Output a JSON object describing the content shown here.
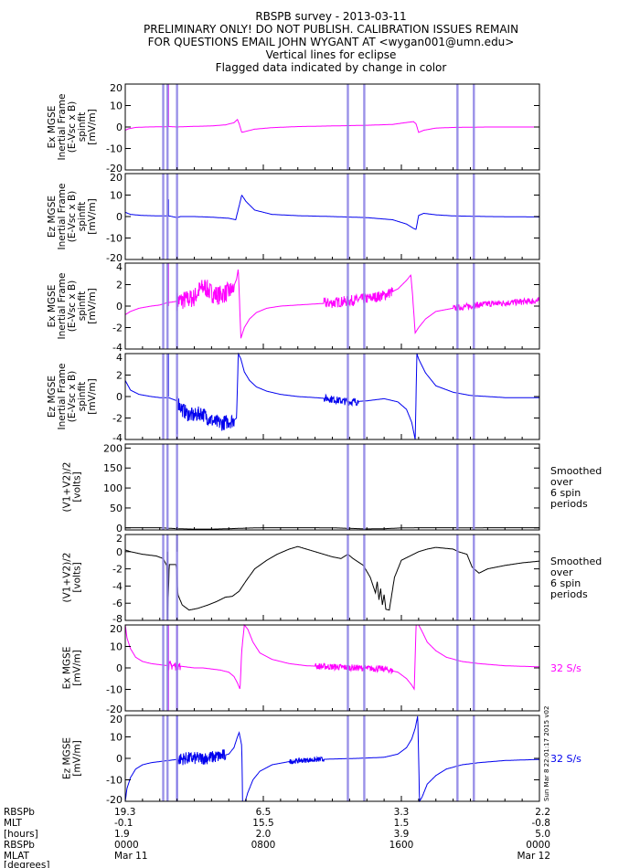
{
  "header": {
    "lines": [
      "RBSPB survey - 2013-03-11",
      "PRELIMINARY ONLY! DO NOT PUBLISH. CALIBRATION ISSUES REMAIN",
      "FOR QUESTIONS EMAIL JOHN WYGANT AT <wygan001@umn.edu>",
      "Vertical lines for eclipse",
      "Flagged data indicated by change in color"
    ]
  },
  "colors": {
    "magenta": "#ff00ff",
    "blue": "#0000ee",
    "black": "#000000",
    "eclipse": "#8f85e6",
    "frame": "#000000"
  },
  "eclipse_lines_hours": [
    2.2,
    2.45,
    3.0,
    12.9,
    13.85,
    19.25,
    20.2
  ],
  "flag_line_hours": 2.5,
  "chart_data": [
    {
      "type": "line",
      "ylabel_lines": [
        "Ex MGSE",
        "Inertial Frame",
        "(E-Vsc x B)",
        "spinfit",
        "[mV/m]"
      ],
      "ylim": [
        -20,
        20
      ],
      "yticks": [
        "20",
        "10",
        "0",
        "-10",
        "-20"
      ],
      "ytick_values": [
        20,
        10,
        0,
        -10,
        -20
      ],
      "color": "magenta",
      "series": [
        {
          "x": [
            0,
            0.2,
            0.6,
            1.2,
            2.0,
            2.3,
            2.5,
            2.6,
            3.0,
            3.2,
            4,
            5,
            5.8,
            6.3,
            6.5,
            6.6,
            6.75,
            7.0,
            7.5,
            8.5,
            10,
            12,
            14,
            15.5,
            16.2,
            16.7,
            16.85,
            17.0,
            17.3,
            18,
            19,
            21,
            24
          ],
          "y": [
            -1.5,
            -0.8,
            -0.2,
            0.0,
            0.1,
            0.1,
            0.2,
            0.2,
            0.0,
            0.1,
            0.3,
            0.5,
            1.0,
            2.0,
            3.5,
            1.5,
            -2.5,
            -2.0,
            -1.0,
            -0.3,
            0.2,
            0.5,
            0.8,
            1.2,
            2.0,
            2.5,
            1.5,
            -2.5,
            -1.5,
            -0.5,
            -0.2,
            0.0,
            0.0
          ]
        }
      ],
      "spikes": [
        [
          2.5,
          20
        ]
      ]
    },
    {
      "type": "line",
      "ylabel_lines": [
        "Ez MGSE",
        "Inertial Frame",
        "(E-Vsc x B)",
        "spinfit",
        "[mV/m]"
      ],
      "ylim": [
        -20,
        20
      ],
      "yticks": [
        "20",
        "10",
        "0",
        "-10",
        "-20"
      ],
      "ytick_values": [
        20,
        10,
        0,
        -10,
        -20
      ],
      "color": "blue",
      "series": [
        {
          "x": [
            0,
            0.3,
            1.0,
            2.0,
            2.45,
            2.6,
            3.0,
            3.2,
            4,
            5,
            6,
            6.4,
            6.6,
            6.75,
            7.0,
            7.5,
            8.5,
            10,
            12,
            14,
            15.5,
            16.3,
            16.7,
            16.85,
            17.0,
            17.3,
            18,
            19,
            21,
            24
          ],
          "y": [
            2.0,
            1.0,
            0.5,
            0.3,
            0.3,
            0.2,
            -0.5,
            0.0,
            0.0,
            -0.3,
            -0.8,
            -1.5,
            5.0,
            10.0,
            7.0,
            3.0,
            1.0,
            0.4,
            0.0,
            -0.5,
            -1.5,
            -3.5,
            -5.5,
            -6.0,
            0.5,
            1.5,
            0.8,
            0.3,
            0.0,
            -0.2
          ]
        }
      ],
      "spikes": [
        [
          2.5,
          8
        ]
      ]
    },
    {
      "type": "line",
      "ylabel_lines": [
        "Ex MGSE",
        "Inertial Frame",
        "(E-Vsc x B)",
        "spinfit",
        "[mV/m]"
      ],
      "ylim": [
        -4,
        4
      ],
      "yticks": [
        "4",
        "2",
        "0",
        "-2",
        "-4"
      ],
      "ytick_values": [
        4,
        2,
        0,
        -2,
        -4
      ],
      "color": "magenta",
      "series": [
        {
          "x": [
            0,
            0.3,
            0.8,
            1.5,
            2.0,
            2.4,
            2.8,
            3.2,
            3.6,
            4.0,
            4.3,
            4.6,
            5.0,
            5.4,
            5.8,
            6.2,
            6.45,
            6.55,
            6.7,
            6.9,
            7.2,
            7.6,
            8.2,
            9,
            10,
            11,
            12,
            13,
            14,
            15,
            15.8,
            16.3,
            16.55,
            16.65,
            16.8,
            17.0,
            17.4,
            18,
            19,
            20,
            21,
            22,
            23,
            24
          ],
          "y": [
            -0.8,
            -0.5,
            -0.2,
            0.0,
            0.1,
            0.3,
            0.4,
            0.5,
            0.6,
            0.8,
            1.5,
            1.8,
            1.2,
            1.0,
            1.2,
            1.5,
            2.5,
            3.5,
            -3.0,
            -2.0,
            -1.2,
            -0.6,
            -0.2,
            0.0,
            0.1,
            0.2,
            0.3,
            0.5,
            0.7,
            1.0,
            1.6,
            2.4,
            2.9,
            1.0,
            -2.5,
            -2.0,
            -1.2,
            -0.5,
            -0.2,
            0.0,
            0.2,
            0.3,
            0.4,
            0.5
          ]
        }
      ],
      "noise": [
        [
          3.0,
          6.3,
          0.9
        ],
        [
          11.5,
          15.5,
          0.5
        ],
        [
          19.0,
          24,
          0.3
        ]
      ],
      "spikes": [
        [
          2.5,
          4
        ]
      ]
    },
    {
      "type": "line",
      "ylabel_lines": [
        "Ez MGSE",
        "Inertial Frame",
        "(E-Vsc x B)",
        "spinfit",
        "[mV/m]"
      ],
      "ylim": [
        -4,
        4
      ],
      "yticks": [
        "4",
        "2",
        "0",
        "-2",
        "-4"
      ],
      "ytick_values": [
        4,
        2,
        0,
        -2,
        -4
      ],
      "color": "blue",
      "series": [
        {
          "x": [
            0,
            0.3,
            0.8,
            1.5,
            2.0,
            2.5,
            3.0,
            3.3,
            3.6,
            4.0,
            4.4,
            4.8,
            5.2,
            5.6,
            6.0,
            6.3,
            6.45,
            6.55,
            6.7,
            6.9,
            7.2,
            7.6,
            8.2,
            9,
            10,
            11,
            11.8,
            12.5,
            13,
            14,
            15,
            15.8,
            16.3,
            16.6,
            16.8,
            16.9,
            17.0,
            17.4,
            18,
            19,
            20,
            21,
            22,
            23,
            24
          ],
          "y": [
            1.5,
            0.6,
            0.2,
            0.0,
            -0.1,
            -0.1,
            -0.4,
            -1.2,
            -1.6,
            -1.8,
            -1.5,
            -2.0,
            -2.4,
            -2.5,
            -2.3,
            -2.2,
            -2.0,
            4.0,
            3.5,
            2.3,
            1.5,
            0.9,
            0.5,
            0.2,
            0.0,
            -0.1,
            -0.2,
            -0.4,
            -0.5,
            -0.4,
            -0.2,
            -0.5,
            -1.2,
            -2.4,
            -4.0,
            4.0,
            3.5,
            2.2,
            1.0,
            0.4,
            0.1,
            0.0,
            -0.1,
            -0.1,
            -0.1
          ]
        }
      ],
      "noise": [
        [
          3.0,
          6.3,
          0.7
        ],
        [
          11.5,
          13.5,
          0.35
        ]
      ],
      "spikes": [
        [
          2.5,
          4
        ],
        [
          3.0,
          -3.5
        ]
      ]
    },
    {
      "type": "line",
      "ylabel_lines": [
        "(V1+V2)/2",
        "[volts]"
      ],
      "ylim": [
        -5,
        210
      ],
      "yticks": [
        "200",
        "150",
        "100",
        "50",
        "0"
      ],
      "ytick_values": [
        200,
        150,
        100,
        50,
        0
      ],
      "color": "black",
      "side_label_lines": [
        "Smoothed",
        "over",
        "6 spin",
        "periods"
      ],
      "series": [
        {
          "x": [
            0,
            2,
            3,
            4,
            5,
            6,
            7,
            8,
            10,
            12,
            14,
            15,
            16,
            17,
            18,
            20,
            22,
            24
          ],
          "y": [
            0.5,
            0.5,
            -2,
            -3,
            -3,
            -2,
            -0.5,
            0.5,
            0.5,
            0.3,
            -2.5,
            -2,
            0,
            0.5,
            0.5,
            0.3,
            0.5,
            0.5
          ]
        }
      ],
      "spikes": [
        [
          3.0,
          3
        ]
      ]
    },
    {
      "type": "line",
      "ylabel_lines": [
        "(V1+V2)/2",
        "[volts]"
      ],
      "ylim": [
        -8,
        2
      ],
      "yticks": [
        "2",
        "0",
        "-2",
        "-4",
        "-6",
        "-8"
      ],
      "ytick_values": [
        2,
        0,
        -2,
        -4,
        -6,
        -8
      ],
      "color": "black",
      "side_label_lines": [
        "Smoothed",
        "over",
        "6 spin",
        "periods"
      ],
      "series": [
        {
          "x": [
            0,
            0.3,
            1.0,
            1.8,
            2.2,
            2.4,
            2.45,
            2.55,
            2.95,
            3.05,
            3.3,
            3.7,
            4.2,
            4.8,
            5.3,
            5.8,
            6.2,
            6.6,
            7.0,
            7.5,
            8.2,
            8.8,
            9.5,
            10,
            11,
            12.0,
            12.5,
            12.9,
            13.2,
            13.8,
            14.2,
            14.5,
            14.6,
            14.7,
            14.8,
            14.9,
            15.0,
            15.1,
            15.3,
            15.6,
            16,
            17,
            17.5,
            18,
            19,
            19.3,
            19.8,
            20.1,
            20.5,
            21,
            22,
            23,
            24
          ],
          "y": [
            0.2,
            0.0,
            -0.3,
            -0.5,
            -0.8,
            -1.6,
            -8,
            -1.5,
            -1.5,
            -5.0,
            -6.2,
            -6.8,
            -6.6,
            -6.2,
            -5.8,
            -5.3,
            -5.2,
            -4.6,
            -3.4,
            -2.0,
            -1.0,
            -0.3,
            0.3,
            0.6,
            0.0,
            -0.6,
            -0.8,
            -0.3,
            -0.8,
            -1.6,
            -3.0,
            -4.8,
            -3.5,
            -5.6,
            -4.3,
            -6.2,
            -5.0,
            -6.7,
            -6.8,
            -3.0,
            -1.0,
            0.0,
            0.3,
            0.5,
            0.3,
            0.0,
            -0.3,
            -1.8,
            -2.5,
            -2.0,
            -1.6,
            -1.3,
            -1.1
          ]
        }
      ],
      "spikes": [
        [
          3.0,
          2
        ],
        [
          2.45,
          -8
        ]
      ]
    },
    {
      "type": "line",
      "ylabel_lines": [
        "Ex MGSE",
        "[mV/m]"
      ],
      "ylim": [
        -20,
        20
      ],
      "yticks": [
        "20",
        "10",
        "0",
        "-10",
        "-20"
      ],
      "ytick_values": [
        20,
        10,
        0,
        -10,
        -20
      ],
      "color": "magenta",
      "side_label_lines": [
        "32 S/s"
      ],
      "side_label_color": "magenta",
      "series": [
        {
          "x": [
            0,
            0.1,
            0.3,
            0.6,
            1.0,
            1.5,
            2.0,
            2.5,
            3,
            3.5,
            4,
            4.5,
            5,
            5.5,
            6.0,
            6.3,
            6.5,
            6.65,
            6.75,
            6.9,
            7.1,
            7.4,
            7.8,
            8.5,
            9.5,
            10.5,
            12,
            13.5,
            15,
            15.8,
            16.3,
            16.6,
            16.75,
            16.85,
            17.0,
            17.2,
            17.5,
            18,
            18.6,
            19.5,
            20.5,
            22,
            24
          ],
          "y": [
            20,
            14,
            9,
            5,
            3,
            2,
            1.5,
            1,
            1,
            0.5,
            0,
            0,
            -0.5,
            -1,
            -2,
            -4,
            -7,
            -10,
            8,
            20,
            18,
            12,
            7,
            4,
            2,
            1,
            0.5,
            0,
            -0.5,
            -2,
            -5,
            -8,
            -10,
            20,
            20,
            17,
            12,
            8,
            5,
            3,
            2,
            1,
            0.5
          ]
        }
      ],
      "noise": [
        [
          11.0,
          15.5,
          1.5
        ],
        [
          2.5,
          3.2,
          2.0
        ]
      ],
      "spikes": [
        [
          2.5,
          20
        ],
        [
          2.5,
          -20
        ],
        [
          3.0,
          20
        ],
        [
          3.0,
          -20
        ]
      ]
    },
    {
      "type": "line",
      "ylabel_lines": [
        "Ez MGSE",
        "[mV/m]"
      ],
      "ylim": [
        -20,
        20
      ],
      "yticks": [
        "20",
        "10",
        "0",
        "-10",
        "-20"
      ],
      "ytick_values": [
        20,
        10,
        0,
        -10,
        -20
      ],
      "color": "blue",
      "side_label_lines": [
        "32 S/s"
      ],
      "side_label_color": "blue",
      "series": [
        {
          "x": [
            0,
            0.1,
            0.3,
            0.6,
            1.0,
            1.5,
            2.0,
            2.5,
            3,
            3.5,
            4,
            4.5,
            5,
            5.5,
            6.0,
            6.3,
            6.5,
            6.6,
            6.75,
            6.8,
            6.95,
            7.1,
            7.4,
            7.8,
            8.5,
            9.5,
            10.5,
            12,
            13.5,
            15,
            15.8,
            16.3,
            16.6,
            16.8,
            16.95,
            17.05,
            17.2,
            17.5,
            18,
            18.6,
            19.5,
            20.5,
            22,
            24
          ],
          "y": [
            -20,
            -14,
            -9,
            -5,
            -3,
            -2,
            -1.5,
            -1,
            -0.5,
            0,
            0,
            0,
            0.5,
            1,
            2,
            5,
            10,
            12,
            6,
            -20,
            -20,
            -16,
            -10,
            -6,
            -3,
            -1.5,
            -0.8,
            -0.3,
            0,
            0.5,
            2,
            5,
            9,
            14,
            20,
            -20,
            -18,
            -12,
            -8,
            -5,
            -3,
            -2,
            -1,
            -0.5
          ]
        }
      ],
      "noise": [
        [
          3.0,
          5.8,
          3.0
        ],
        [
          9.5,
          11.5,
          1.2
        ]
      ],
      "spikes": [
        [
          3.0,
          20
        ],
        [
          3.0,
          -20
        ]
      ]
    }
  ],
  "xaxis": {
    "row_labels": [
      "RBSPb",
      "MLT",
      "[hours]",
      "RBSPb",
      "MLAT",
      "[degrees]"
    ],
    "columns": [
      {
        "hour": 0,
        "values": [
          "19.3",
          "-0.1",
          "1.9",
          "0000",
          "Mar 11"
        ]
      },
      {
        "hour": 8,
        "values": [
          "6.5",
          "15.5",
          "2.0",
          "0800",
          ""
        ]
      },
      {
        "hour": 16,
        "values": [
          "3.3",
          "1.5",
          "3.9",
          "1600",
          ""
        ]
      },
      {
        "hour": 24,
        "values": [
          "2.2",
          "-0.8",
          "5.0",
          "0000",
          "Mar 12"
        ]
      }
    ]
  },
  "credit": "Sun Mar 8 22:01:17 2015 v02"
}
